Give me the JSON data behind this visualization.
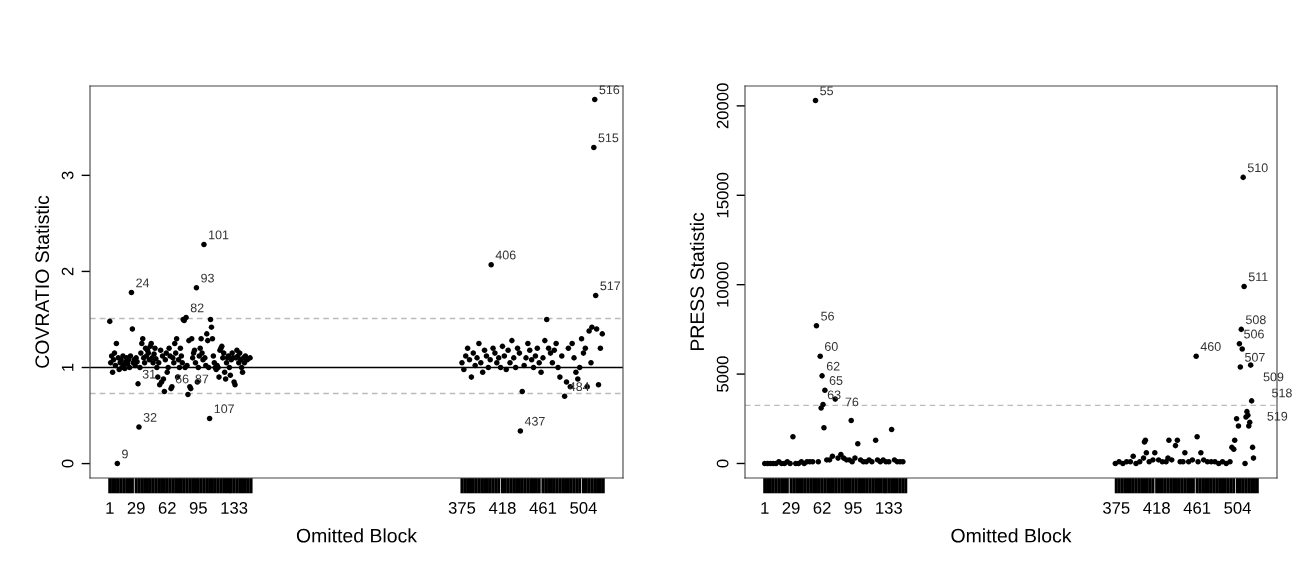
{
  "chart_data": [
    {
      "type": "scatter",
      "xlabel": "Omitted Block",
      "ylabel": "COVRATIO Statistic",
      "marker": "circle",
      "grid": false,
      "xlim": [
        -20,
        546
      ],
      "ylim": [
        -0.15,
        3.93
      ],
      "yticks": [
        0,
        1,
        2,
        3
      ],
      "xticks": [
        {
          "value": 1,
          "label": "1"
        },
        {
          "value": 29,
          "label": "29"
        },
        {
          "value": 62,
          "label": "62"
        },
        {
          "value": 95,
          "label": "95"
        },
        {
          "value": 133,
          "label": "133"
        },
        {
          "value": 375,
          "label": "375"
        },
        {
          "value": 418,
          "label": "418"
        },
        {
          "value": 461,
          "label": "461"
        },
        {
          "value": 504,
          "label": "504"
        },
        {
          "value": 4,
          "label": null
        },
        {
          "value": 7,
          "label": null
        },
        {
          "value": 10,
          "label": null
        },
        {
          "value": 13,
          "label": null
        },
        {
          "value": 16,
          "label": null
        },
        {
          "value": 19,
          "label": null
        },
        {
          "value": 22,
          "label": null
        },
        {
          "value": 25,
          "label": null
        },
        {
          "value": 32,
          "label": null
        },
        {
          "value": 35,
          "label": null
        },
        {
          "value": 38,
          "label": null
        },
        {
          "value": 41,
          "label": null
        },
        {
          "value": 44,
          "label": null
        },
        {
          "value": 47,
          "label": null
        },
        {
          "value": 50,
          "label": null
        },
        {
          "value": 53,
          "label": null
        },
        {
          "value": 56,
          "label": null
        },
        {
          "value": 59,
          "label": null
        },
        {
          "value": 65,
          "label": null
        },
        {
          "value": 68,
          "label": null
        },
        {
          "value": 71,
          "label": null
        },
        {
          "value": 74,
          "label": null
        },
        {
          "value": 77,
          "label": null
        },
        {
          "value": 80,
          "label": null
        },
        {
          "value": 83,
          "label": null
        },
        {
          "value": 86,
          "label": null
        },
        {
          "value": 89,
          "label": null
        },
        {
          "value": 92,
          "label": null
        },
        {
          "value": 98,
          "label": null
        },
        {
          "value": 101,
          "label": null
        },
        {
          "value": 104,
          "label": null
        },
        {
          "value": 107,
          "label": null
        },
        {
          "value": 110,
          "label": null
        },
        {
          "value": 113,
          "label": null
        },
        {
          "value": 116,
          "label": null
        },
        {
          "value": 119,
          "label": null
        },
        {
          "value": 122,
          "label": null
        },
        {
          "value": 125,
          "label": null
        },
        {
          "value": 128,
          "label": null
        },
        {
          "value": 130,
          "label": null
        },
        {
          "value": 136,
          "label": null
        },
        {
          "value": 139,
          "label": null
        },
        {
          "value": 142,
          "label": null
        },
        {
          "value": 145,
          "label": null
        },
        {
          "value": 148,
          "label": null
        },
        {
          "value": 151,
          "label": null
        },
        {
          "value": 378,
          "label": null
        },
        {
          "value": 381,
          "label": null
        },
        {
          "value": 384,
          "label": null
        },
        {
          "value": 387,
          "label": null
        },
        {
          "value": 390,
          "label": null
        },
        {
          "value": 393,
          "label": null
        },
        {
          "value": 396,
          "label": null
        },
        {
          "value": 399,
          "label": null
        },
        {
          "value": 402,
          "label": null
        },
        {
          "value": 405,
          "label": null
        },
        {
          "value": 408,
          "label": null
        },
        {
          "value": 411,
          "label": null
        },
        {
          "value": 414,
          "label": null
        },
        {
          "value": 421,
          "label": null
        },
        {
          "value": 424,
          "label": null
        },
        {
          "value": 427,
          "label": null
        },
        {
          "value": 430,
          "label": null
        },
        {
          "value": 433,
          "label": null
        },
        {
          "value": 436,
          "label": null
        },
        {
          "value": 439,
          "label": null
        },
        {
          "value": 442,
          "label": null
        },
        {
          "value": 445,
          "label": null
        },
        {
          "value": 448,
          "label": null
        },
        {
          "value": 451,
          "label": null
        },
        {
          "value": 454,
          "label": null
        },
        {
          "value": 457,
          "label": null
        },
        {
          "value": 464,
          "label": null
        },
        {
          "value": 467,
          "label": null
        },
        {
          "value": 470,
          "label": null
        },
        {
          "value": 473,
          "label": null
        },
        {
          "value": 476,
          "label": null
        },
        {
          "value": 479,
          "label": null
        },
        {
          "value": 482,
          "label": null
        },
        {
          "value": 485,
          "label": null
        },
        {
          "value": 488,
          "label": null
        },
        {
          "value": 491,
          "label": null
        },
        {
          "value": 494,
          "label": null
        },
        {
          "value": 497,
          "label": null
        },
        {
          "value": 500,
          "label": null
        },
        {
          "value": 507,
          "label": null
        },
        {
          "value": 510,
          "label": null
        },
        {
          "value": 513,
          "label": null
        },
        {
          "value": 516,
          "label": null
        },
        {
          "value": 519,
          "label": null
        },
        {
          "value": 522,
          "label": null
        },
        {
          "value": 525,
          "label": null
        }
      ],
      "ref_lines": [
        {
          "axis": "y",
          "value": 1,
          "color": "#000000",
          "line_style": "solid"
        },
        {
          "axis": "y",
          "value": 1.51,
          "color": "#bbbbbb",
          "line_style": "dashed"
        },
        {
          "axis": "y",
          "value": 0.73,
          "color": "#bbbbbb",
          "line_style": "dashed"
        }
      ],
      "series": [
        {
          "color": "#000000",
          "x": [
            1,
            2,
            3,
            4,
            5,
            6,
            7,
            8,
            9,
            10,
            11,
            12,
            13,
            14,
            15,
            16,
            17,
            18,
            19,
            20,
            21,
            22,
            23,
            24,
            25,
            26,
            27,
            28,
            29,
            30,
            31,
            32,
            33,
            34,
            35,
            36,
            37,
            38,
            39,
            40,
            41,
            42,
            43,
            44,
            45,
            46,
            47,
            48,
            49,
            50,
            51,
            52,
            53,
            54,
            55,
            56,
            57,
            58,
            59,
            60,
            61,
            62,
            63,
            64,
            65,
            66,
            67,
            68,
            69,
            70,
            71,
            72,
            73,
            74,
            75,
            76,
            77,
            78,
            79,
            80,
            81,
            82,
            83,
            84,
            85,
            86,
            87,
            88,
            89,
            90,
            91,
            92,
            93,
            94,
            95,
            96,
            97,
            98,
            99,
            100,
            101,
            102,
            103,
            104,
            105,
            106,
            107,
            108,
            109,
            110,
            111,
            112,
            113,
            114,
            115,
            116,
            117,
            118,
            119,
            120,
            121,
            122,
            123,
            124,
            125,
            126,
            127,
            128,
            129,
            130,
            131,
            132,
            133,
            134,
            135,
            136,
            137,
            138,
            139,
            140,
            141,
            142,
            143,
            144,
            145,
            147,
            150,
            375,
            377,
            379,
            381,
            383,
            385,
            387,
            389,
            391,
            393,
            395,
            397,
            399,
            401,
            403,
            405,
            406,
            408,
            410,
            412,
            414,
            416,
            418,
            420,
            422,
            424,
            426,
            428,
            430,
            432,
            434,
            436,
            437,
            439,
            441,
            443,
            445,
            447,
            449,
            451,
            453,
            455,
            457,
            459,
            461,
            463,
            465,
            467,
            469,
            471,
            473,
            475,
            477,
            479,
            481,
            484,
            486,
            488,
            490,
            492,
            494,
            496,
            498,
            500,
            502,
            504,
            506,
            508,
            510,
            512,
            513,
            515,
            516,
            517,
            518,
            520,
            522,
            524
          ],
          "values": [
            1.48,
            1.05,
            1.12,
            0.95,
            1.08,
            1.15,
            1.02,
            1.25,
            0.0,
            1.1,
            0.98,
            1.05,
            1.08,
            1.0,
            1.12,
            1.03,
            0.99,
            1.06,
            1.1,
            1.04,
            1.08,
            1.0,
            1.12,
            1.78,
            1.4,
            1.05,
            1.08,
            1.02,
            1.1,
            1.06,
            0.83,
            0.38,
            1.0,
            1.15,
            1.25,
            1.3,
            1.1,
            1.05,
            1.2,
            1.12,
            1.18,
            1.15,
            1.08,
            1.22,
            1.25,
            1.1,
            1.05,
            1.14,
            1.2,
            1.09,
            1.0,
            0.9,
            1.05,
            0.82,
            1.18,
            0.85,
            1.12,
            0.88,
            0.75,
            1.08,
            1.15,
            0.95,
            1.0,
            1.2,
            1.12,
            0.78,
            0.8,
            1.1,
            1.05,
            1.25,
            1.15,
            1.3,
            0.9,
            1.08,
            1.0,
            1.2,
            1.12,
            1.05,
            1.5,
            1.49,
            1.0,
            1.52,
            1.02,
            0.72,
            1.28,
            0.8,
            0.78,
            1.3,
            1.1,
            1.15,
            1.18,
            1.05,
            1.83,
            0.85,
            1.0,
            1.12,
            1.2,
            1.3,
            1.15,
            1.08,
            2.28,
            1.1,
            1.02,
            1.35,
            1.28,
            1.0,
            0.47,
            1.5,
            1.42,
            1.3,
            1.12,
            1.05,
            1.0,
            0.98,
            1.02,
            1.0,
            0.9,
            1.18,
            1.2,
            1.22,
            1.1,
            1.15,
            0.95,
            0.88,
            1.05,
            1.1,
            1.12,
            1.0,
            0.92,
            1.08,
            1.15,
            1.1,
            0.85,
            0.82,
            1.1,
            1.18,
            1.12,
            1.05,
            1.15,
            1.08,
            1.0,
            0.95,
            1.1,
            1.05,
            1.12,
            1.08,
            1.1,
            1.05,
            0.98,
            1.12,
            1.2,
            1.08,
            0.9,
            1.15,
            1.02,
            1.1,
            1.25,
            1.05,
            0.95,
            1.18,
            1.12,
            1.0,
            1.08,
            2.07,
            1.2,
            1.15,
            1.05,
            1.1,
            1.0,
            1.22,
            1.12,
            0.98,
            1.18,
            1.05,
            1.28,
            1.1,
            1.0,
            1.2,
            1.15,
            0.34,
            0.75,
            1.02,
            1.1,
            1.25,
            1.18,
            1.08,
            1.0,
            1.12,
            1.2,
            1.05,
            0.95,
            1.1,
            1.28,
            1.5,
            1.2,
            1.15,
            1.05,
            1.18,
            1.25,
            1.0,
            0.9,
            1.12,
            0.7,
            0.85,
            1.2,
            0.8,
            1.25,
            1.1,
            0.95,
            0.88,
            1.0,
            1.3,
            1.15,
            1.2,
            0.8,
            1.38,
            1.05,
            1.42,
            3.29,
            3.79,
            1.75,
            1.4,
            0.82,
            1.2,
            1.35
          ]
        }
      ],
      "annotations": [
        {
          "text": "9",
          "x": 9,
          "y": 0.0
        },
        {
          "text": "24",
          "x": 24,
          "y": 1.78
        },
        {
          "text": "31",
          "x": 31,
          "y": 0.83
        },
        {
          "text": "32",
          "x": 32,
          "y": 0.38
        },
        {
          "text": "66",
          "x": 66,
          "y": 0.78
        },
        {
          "text": "82",
          "x": 82,
          "y": 1.52
        },
        {
          "text": "87",
          "x": 87,
          "y": 0.78
        },
        {
          "text": "93",
          "x": 93,
          "y": 1.83
        },
        {
          "text": "101",
          "x": 101,
          "y": 2.28
        },
        {
          "text": "107",
          "x": 107,
          "y": 0.47
        },
        {
          "text": "406",
          "x": 406,
          "y": 2.07
        },
        {
          "text": "437",
          "x": 437,
          "y": 0.34
        },
        {
          "text": "484",
          "x": 484,
          "y": 0.7
        },
        {
          "text": "515",
          "x": 515,
          "y": 3.29
        },
        {
          "text": "516",
          "x": 516,
          "y": 3.79
        },
        {
          "text": "517",
          "x": 517,
          "y": 1.75
        }
      ]
    },
    {
      "type": "scatter",
      "xlabel": "Omitted Block",
      "ylabel": "PRESS Statistic",
      "marker": "circle",
      "grid": false,
      "xlim": [
        -20,
        546
      ],
      "ylim": [
        -812,
        21112
      ],
      "yticks": [
        0,
        5000,
        10000,
        15000,
        20000
      ],
      "xticks": [
        {
          "value": 1,
          "label": "1"
        },
        {
          "value": 29,
          "label": "29"
        },
        {
          "value": 62,
          "label": "62"
        },
        {
          "value": 95,
          "label": "95"
        },
        {
          "value": 133,
          "label": "133"
        },
        {
          "value": 375,
          "label": "375"
        },
        {
          "value": 418,
          "label": "418"
        },
        {
          "value": 461,
          "label": "461"
        },
        {
          "value": 504,
          "label": "504"
        },
        {
          "value": 4,
          "label": null
        },
        {
          "value": 7,
          "label": null
        },
        {
          "value": 10,
          "label": null
        },
        {
          "value": 13,
          "label": null
        },
        {
          "value": 16,
          "label": null
        },
        {
          "value": 19,
          "label": null
        },
        {
          "value": 22,
          "label": null
        },
        {
          "value": 25,
          "label": null
        },
        {
          "value": 32,
          "label": null
        },
        {
          "value": 35,
          "label": null
        },
        {
          "value": 38,
          "label": null
        },
        {
          "value": 41,
          "label": null
        },
        {
          "value": 44,
          "label": null
        },
        {
          "value": 47,
          "label": null
        },
        {
          "value": 50,
          "label": null
        },
        {
          "value": 53,
          "label": null
        },
        {
          "value": 56,
          "label": null
        },
        {
          "value": 59,
          "label": null
        },
        {
          "value": 65,
          "label": null
        },
        {
          "value": 68,
          "label": null
        },
        {
          "value": 71,
          "label": null
        },
        {
          "value": 74,
          "label": null
        },
        {
          "value": 77,
          "label": null
        },
        {
          "value": 80,
          "label": null
        },
        {
          "value": 83,
          "label": null
        },
        {
          "value": 86,
          "label": null
        },
        {
          "value": 89,
          "label": null
        },
        {
          "value": 92,
          "label": null
        },
        {
          "value": 98,
          "label": null
        },
        {
          "value": 101,
          "label": null
        },
        {
          "value": 104,
          "label": null
        },
        {
          "value": 107,
          "label": null
        },
        {
          "value": 110,
          "label": null
        },
        {
          "value": 113,
          "label": null
        },
        {
          "value": 116,
          "label": null
        },
        {
          "value": 119,
          "label": null
        },
        {
          "value": 122,
          "label": null
        },
        {
          "value": 125,
          "label": null
        },
        {
          "value": 128,
          "label": null
        },
        {
          "value": 130,
          "label": null
        },
        {
          "value": 136,
          "label": null
        },
        {
          "value": 139,
          "label": null
        },
        {
          "value": 142,
          "label": null
        },
        {
          "value": 145,
          "label": null
        },
        {
          "value": 148,
          "label": null
        },
        {
          "value": 151,
          "label": null
        },
        {
          "value": 378,
          "label": null
        },
        {
          "value": 381,
          "label": null
        },
        {
          "value": 384,
          "label": null
        },
        {
          "value": 387,
          "label": null
        },
        {
          "value": 390,
          "label": null
        },
        {
          "value": 393,
          "label": null
        },
        {
          "value": 396,
          "label": null
        },
        {
          "value": 399,
          "label": null
        },
        {
          "value": 402,
          "label": null
        },
        {
          "value": 405,
          "label": null
        },
        {
          "value": 408,
          "label": null
        },
        {
          "value": 411,
          "label": null
        },
        {
          "value": 414,
          "label": null
        },
        {
          "value": 421,
          "label": null
        },
        {
          "value": 424,
          "label": null
        },
        {
          "value": 427,
          "label": null
        },
        {
          "value": 430,
          "label": null
        },
        {
          "value": 433,
          "label": null
        },
        {
          "value": 436,
          "label": null
        },
        {
          "value": 439,
          "label": null
        },
        {
          "value": 442,
          "label": null
        },
        {
          "value": 445,
          "label": null
        },
        {
          "value": 448,
          "label": null
        },
        {
          "value": 451,
          "label": null
        },
        {
          "value": 454,
          "label": null
        },
        {
          "value": 457,
          "label": null
        },
        {
          "value": 464,
          "label": null
        },
        {
          "value": 467,
          "label": null
        },
        {
          "value": 470,
          "label": null
        },
        {
          "value": 473,
          "label": null
        },
        {
          "value": 476,
          "label": null
        },
        {
          "value": 479,
          "label": null
        },
        {
          "value": 482,
          "label": null
        },
        {
          "value": 485,
          "label": null
        },
        {
          "value": 488,
          "label": null
        },
        {
          "value": 491,
          "label": null
        },
        {
          "value": 494,
          "label": null
        },
        {
          "value": 497,
          "label": null
        },
        {
          "value": 500,
          "label": null
        },
        {
          "value": 507,
          "label": null
        },
        {
          "value": 510,
          "label": null
        },
        {
          "value": 513,
          "label": null
        },
        {
          "value": 516,
          "label": null
        },
        {
          "value": 519,
          "label": null
        },
        {
          "value": 522,
          "label": null
        },
        {
          "value": 525,
          "label": null
        }
      ],
      "ref_lines": [
        {
          "axis": "y",
          "value": 3250,
          "color": "#bbbbbb",
          "line_style": "dashed"
        }
      ],
      "series": [
        {
          "color": "#000000",
          "x": [
            1,
            4,
            7,
            10,
            13,
            16,
            19,
            22,
            25,
            28,
            31,
            34,
            37,
            40,
            43,
            46,
            49,
            52,
            55,
            56,
            58,
            60,
            61,
            62,
            63,
            64,
            65,
            67,
            70,
            73,
            76,
            79,
            82,
            85,
            88,
            91,
            93,
            94,
            97,
            100,
            103,
            106,
            109,
            112,
            115,
            119,
            121,
            124,
            127,
            130,
            133,
            136,
            139,
            142,
            145,
            148,
            374,
            378,
            382,
            386,
            390,
            393,
            396,
            400,
            404,
            405,
            406,
            407,
            410,
            414,
            416,
            420,
            424,
            428,
            430,
            431,
            434,
            438,
            440,
            443,
            446,
            448,
            452,
            456,
            460,
            461,
            462,
            465,
            468,
            472,
            476,
            480,
            484,
            488,
            492,
            496,
            498,
            500,
            501,
            503,
            505,
            506,
            507,
            508,
            509,
            510,
            511,
            512,
            513,
            514,
            515,
            516,
            517,
            518,
            519,
            520,
            521
          ],
          "values": [
            0,
            0,
            0,
            0,
            0,
            100,
            0,
            0,
            100,
            0,
            1500,
            0,
            0,
            100,
            0,
            100,
            100,
            100,
            20300,
            7700,
            100,
            6000,
            3100,
            4900,
            3300,
            2000,
            4100,
            200,
            200,
            400,
            3600,
            300,
            500,
            300,
            200,
            200,
            2400,
            100,
            300,
            1100,
            200,
            100,
            100,
            200,
            100,
            1300,
            200,
            100,
            200,
            100,
            100,
            1900,
            200,
            100,
            100,
            100,
            0,
            100,
            0,
            100,
            100,
            400,
            0,
            100,
            300,
            1200,
            1300,
            600,
            100,
            200,
            600,
            200,
            100,
            100,
            300,
            1300,
            200,
            1000,
            1300,
            100,
            100,
            600,
            100,
            200,
            6000,
            1500,
            100,
            600,
            200,
            100,
            100,
            100,
            0,
            100,
            0,
            100,
            900,
            800,
            1300,
            2500,
            2100,
            6700,
            5400,
            7500,
            6400,
            16000,
            9900,
            0,
            2600,
            2900,
            2700,
            2100,
            2300,
            5500,
            3500,
            900,
            300
          ]
        }
      ],
      "annotations": [
        {
          "text": "55",
          "x": 55,
          "y": 20300
        },
        {
          "text": "56",
          "x": 56,
          "y": 7700
        },
        {
          "text": "60",
          "x": 60,
          "y": 6000
        },
        {
          "text": "62",
          "x": 62,
          "y": 4900
        },
        {
          "text": "65",
          "x": 65,
          "y": 4100
        },
        {
          "text": "63",
          "x": 63,
          "y": 3300
        },
        {
          "text": "76",
          "x": 76,
          "y": 3600
        },
        {
          "text": "460",
          "x": 460,
          "y": 6000
        },
        {
          "text": "506",
          "x": 506,
          "y": 6700
        },
        {
          "text": "507",
          "x": 507,
          "y": 5400
        },
        {
          "text": "508",
          "x": 508,
          "y": 7500
        },
        {
          "text": "509",
          "x": 509,
          "y": 6400
        },
        {
          "text": "510",
          "x": 510,
          "y": 16000
        },
        {
          "text": "511",
          "x": 511,
          "y": 9900
        },
        {
          "text": "518",
          "x": 518,
          "y": 5500
        },
        {
          "text": "519",
          "x": 519,
          "y": 3500
        }
      ]
    }
  ]
}
